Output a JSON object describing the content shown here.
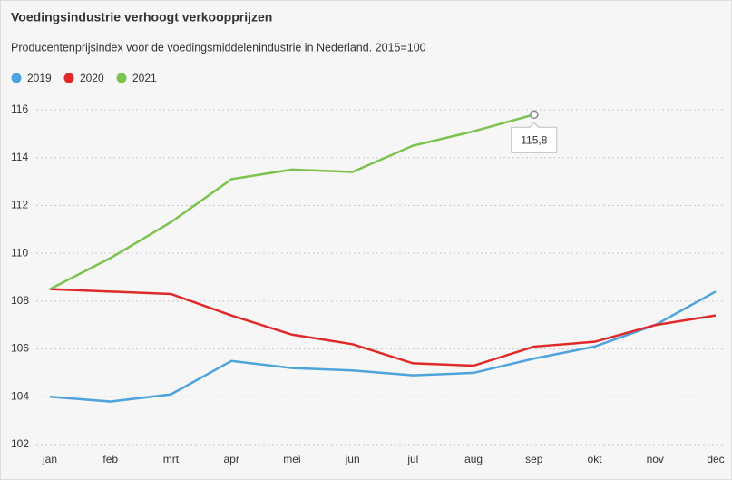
{
  "chart_data": {
    "type": "line",
    "title": "Voedingsindustrie verhoogt verkoopprijzen",
    "subtitle": "Producentenprijsindex voor de voedingsmiddelenindustrie in Nederland. 2015=100",
    "categories": [
      "jan",
      "feb",
      "mrt",
      "apr",
      "mei",
      "jun",
      "jul",
      "aug",
      "sep",
      "okt",
      "nov",
      "dec"
    ],
    "series": [
      {
        "name": "2019",
        "color": "#4fa3dc",
        "values": [
          104.0,
          103.8,
          104.1,
          105.5,
          105.2,
          105.1,
          104.9,
          105.0,
          105.6,
          106.1,
          107.0,
          108.4
        ]
      },
      {
        "name": "2020",
        "color": "#e02a2a",
        "values": [
          108.5,
          108.4,
          108.3,
          107.4,
          106.6,
          106.2,
          105.4,
          105.3,
          106.1,
          106.3,
          107.0,
          107.4
        ]
      },
      {
        "name": "2021",
        "color": "#7cc24e",
        "values": [
          108.5,
          109.8,
          111.3,
          113.1,
          113.5,
          113.4,
          114.5,
          115.1,
          115.8,
          null,
          null,
          null
        ],
        "value_labels": [
          null,
          null,
          null,
          null,
          null,
          null,
          null,
          null,
          "115,8",
          null,
          null,
          null
        ]
      }
    ],
    "ylim": [
      102,
      116
    ],
    "yticks": [
      102,
      104,
      106,
      108,
      110,
      112,
      114,
      116
    ],
    "grid": true,
    "legend": "top-left"
  }
}
